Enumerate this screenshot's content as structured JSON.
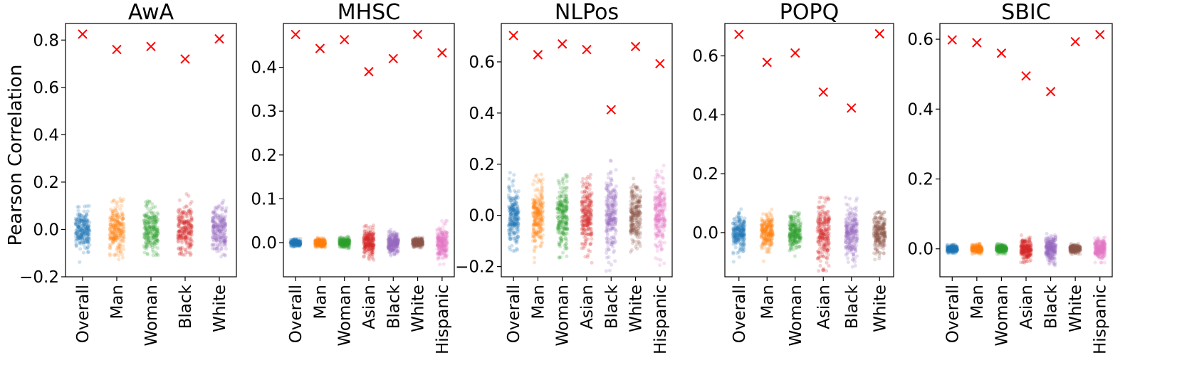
{
  "figure": {
    "ylabel": "Pearson Correlation"
  },
  "colors": {
    "Overall": "#1f77b4",
    "Man": "#ff7f0e",
    "Woman": "#2ca02c",
    "Asian": "#d62728",
    "Black_4": "#d62728",
    "Black_5": "#9467bd",
    "White_5": "#9467bd",
    "White_6": "#8c564b",
    "Hispanic": "#e377c2",
    "marker": "#ff0000"
  },
  "chart_data": [
    {
      "type": "scatter",
      "title": "AwA",
      "ylabel": "Pearson Correlation",
      "ylim": [
        -0.2,
        0.87
      ],
      "yticks": [
        -0.2,
        0.0,
        0.2,
        0.4,
        0.6,
        0.8
      ],
      "ytick_labels": [
        "−0.2",
        "0.0",
        "0.2",
        "0.4",
        "0.6",
        "0.8"
      ],
      "categories": [
        "Overall",
        "Man",
        "Woman",
        "Black",
        "White"
      ],
      "colors": [
        "#1f77b4",
        "#ff7f0e",
        "#2ca02c",
        "#d62728",
        "#9467bd"
      ],
      "x_markers": [
        0.825,
        0.76,
        0.773,
        0.72,
        0.805
      ],
      "jitter_sd": [
        0.045,
        0.05,
        0.05,
        0.05,
        0.05
      ],
      "jitter_range": [
        [
          -0.15,
          0.1
        ],
        [
          -0.13,
          0.15
        ],
        [
          -0.11,
          0.12
        ],
        [
          -0.11,
          0.15
        ],
        [
          -0.12,
          0.14
        ]
      ]
    },
    {
      "type": "scatter",
      "title": "MHSC",
      "ylim": [
        -0.078,
        0.5
      ],
      "yticks": [
        0.0,
        0.1,
        0.2,
        0.3,
        0.4
      ],
      "ytick_labels": [
        "0.0",
        "0.1",
        "0.2",
        "0.3",
        "0.4"
      ],
      "categories": [
        "Overall",
        "Man",
        "Woman",
        "Asian",
        "Black",
        "White",
        "Hispanic"
      ],
      "colors": [
        "#1f77b4",
        "#ff7f0e",
        "#2ca02c",
        "#d62728",
        "#9467bd",
        "#8c564b",
        "#e377c2"
      ],
      "x_markers": [
        0.475,
        0.443,
        0.463,
        0.39,
        0.42,
        0.475,
        0.433
      ],
      "jitter_sd": [
        0.004,
        0.005,
        0.005,
        0.015,
        0.012,
        0.005,
        0.018
      ],
      "jitter_range": [
        [
          -0.01,
          0.01
        ],
        [
          -0.015,
          0.015
        ],
        [
          -0.015,
          0.015
        ],
        [
          -0.04,
          0.04
        ],
        [
          -0.03,
          0.03
        ],
        [
          -0.012,
          0.012
        ],
        [
          -0.05,
          0.05
        ]
      ]
    },
    {
      "type": "scatter",
      "title": "NLPos",
      "ylim": [
        -0.24,
        0.75
      ],
      "yticks": [
        -0.2,
        0.0,
        0.2,
        0.4,
        0.6
      ],
      "ytick_labels": [
        "−0.2",
        "0.0",
        "0.2",
        "0.4",
        "0.6"
      ],
      "categories": [
        "Overall",
        "Man",
        "Woman",
        "Asian",
        "Black",
        "White",
        "Hispanic"
      ],
      "colors": [
        "#1f77b4",
        "#ff7f0e",
        "#2ca02c",
        "#d62728",
        "#9467bd",
        "#8c564b",
        "#e377c2"
      ],
      "x_markers": [
        0.703,
        0.628,
        0.67,
        0.648,
        0.413,
        0.66,
        0.593
      ],
      "jitter_sd": [
        0.06,
        0.065,
        0.065,
        0.07,
        0.075,
        0.06,
        0.075
      ],
      "jitter_range": [
        [
          -0.14,
          0.17
        ],
        [
          -0.2,
          0.16
        ],
        [
          -0.17,
          0.16
        ],
        [
          -0.19,
          0.19
        ],
        [
          -0.22,
          0.29
        ],
        [
          -0.2,
          0.22
        ],
        [
          -0.2,
          0.24
        ]
      ]
    },
    {
      "type": "scatter",
      "title": "POPQ",
      "ylim": [
        -0.15,
        0.71
      ],
      "yticks": [
        0.0,
        0.2,
        0.4,
        0.6
      ],
      "ytick_labels": [
        "0.0",
        "0.2",
        "0.4",
        "0.6"
      ],
      "categories": [
        "Overall",
        "Man",
        "Woman",
        "Asian",
        "Black",
        "White"
      ],
      "colors": [
        "#1f77b4",
        "#ff7f0e",
        "#2ca02c",
        "#d62728",
        "#9467bd",
        "#8c564b"
      ],
      "x_markers": [
        0.673,
        0.578,
        0.61,
        0.477,
        0.423,
        0.675
      ],
      "jitter_sd": [
        0.03,
        0.03,
        0.03,
        0.05,
        0.045,
        0.035
      ],
      "jitter_range": [
        [
          -0.1,
          0.08
        ],
        [
          -0.1,
          0.08
        ],
        [
          -0.1,
          0.07
        ],
        [
          -0.13,
          0.12
        ],
        [
          -0.12,
          0.12
        ],
        [
          -0.1,
          0.07
        ]
      ]
    },
    {
      "type": "scatter",
      "title": "SBIC",
      "ylim": [
        -0.08,
        0.645
      ],
      "yticks": [
        0.0,
        0.2,
        0.4,
        0.6
      ],
      "ytick_labels": [
        "0.0",
        "0.2",
        "0.4",
        "0.6"
      ],
      "categories": [
        "Overall",
        "Man",
        "Woman",
        "Asian",
        "Black",
        "White",
        "Hispanic"
      ],
      "colors": [
        "#1f77b4",
        "#ff7f0e",
        "#2ca02c",
        "#d62728",
        "#9467bd",
        "#8c564b",
        "#e377c2"
      ],
      "x_markers": [
        0.598,
        0.59,
        0.56,
        0.495,
        0.45,
        0.593,
        0.613
      ],
      "jitter_sd": [
        0.005,
        0.006,
        0.006,
        0.015,
        0.018,
        0.006,
        0.014
      ],
      "jitter_range": [
        [
          -0.012,
          0.012
        ],
        [
          -0.015,
          0.015
        ],
        [
          -0.015,
          0.015
        ],
        [
          -0.04,
          0.04
        ],
        [
          -0.05,
          0.05
        ],
        [
          -0.015,
          0.015
        ],
        [
          -0.04,
          0.04
        ]
      ]
    }
  ]
}
